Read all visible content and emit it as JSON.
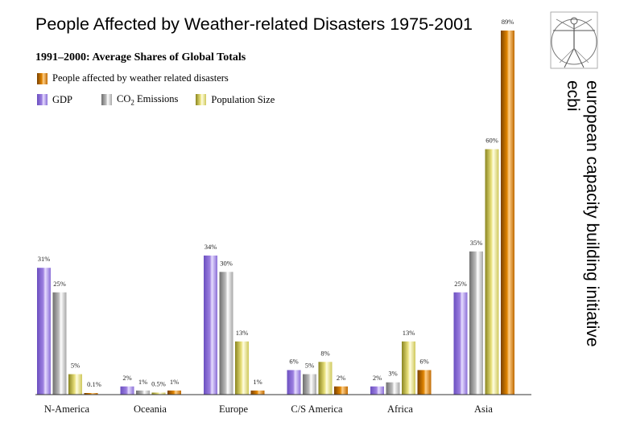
{
  "title": "People Affected by Weather-related Disasters 1975-2001",
  "subtitle": "1991–2000: Average Shares of Global Totals",
  "legend": {
    "people": "People affected by weather related disasters",
    "gdp": "GDP",
    "co2_prefix": "CO",
    "co2_sub": "2",
    "co2_suffix": " Emissions",
    "population": "Population Size"
  },
  "side_text": {
    "line1": "european capacity building initiative",
    "line2": "ecbi"
  },
  "colors": {
    "gdp": "#9c7fe0",
    "co2": "#bdbdbd",
    "population": "#e8e07a",
    "people": "#e08400"
  },
  "chart_data": {
    "type": "bar",
    "title": "People Affected by Weather-related Disasters 1975-2001",
    "subtitle": "1991–2000: Average Shares of Global Totals",
    "categories": [
      "N-America",
      "Oceania",
      "Europe",
      "C/S America",
      "Africa",
      "Asia"
    ],
    "series": [
      {
        "name": "GDP",
        "values": [
          31,
          2,
          34,
          6,
          2,
          25
        ],
        "labels": [
          "31%",
          "2%",
          "34%",
          "6%",
          "2%",
          "25%"
        ]
      },
      {
        "name": "CO2 Emissions",
        "values": [
          25,
          1,
          30,
          5,
          3,
          35
        ],
        "labels": [
          "25%",
          "1%",
          "30%",
          "5%",
          "3%",
          "35%"
        ]
      },
      {
        "name": "Population Size",
        "values": [
          5,
          0.5,
          13,
          8,
          13,
          60
        ],
        "labels": [
          "5%",
          "0.5%",
          "13%",
          "8%",
          "13%",
          "60%"
        ]
      },
      {
        "name": "People affected by weather related disasters",
        "values": [
          0.1,
          1,
          1,
          2,
          6,
          89
        ],
        "labels": [
          "0.1%",
          "1%",
          "1%",
          "2%",
          "6%",
          "89%"
        ]
      }
    ],
    "ylim": [
      0,
      89
    ],
    "xlabel": "",
    "ylabel": "",
    "grid": false,
    "legend_position": "top-left"
  }
}
